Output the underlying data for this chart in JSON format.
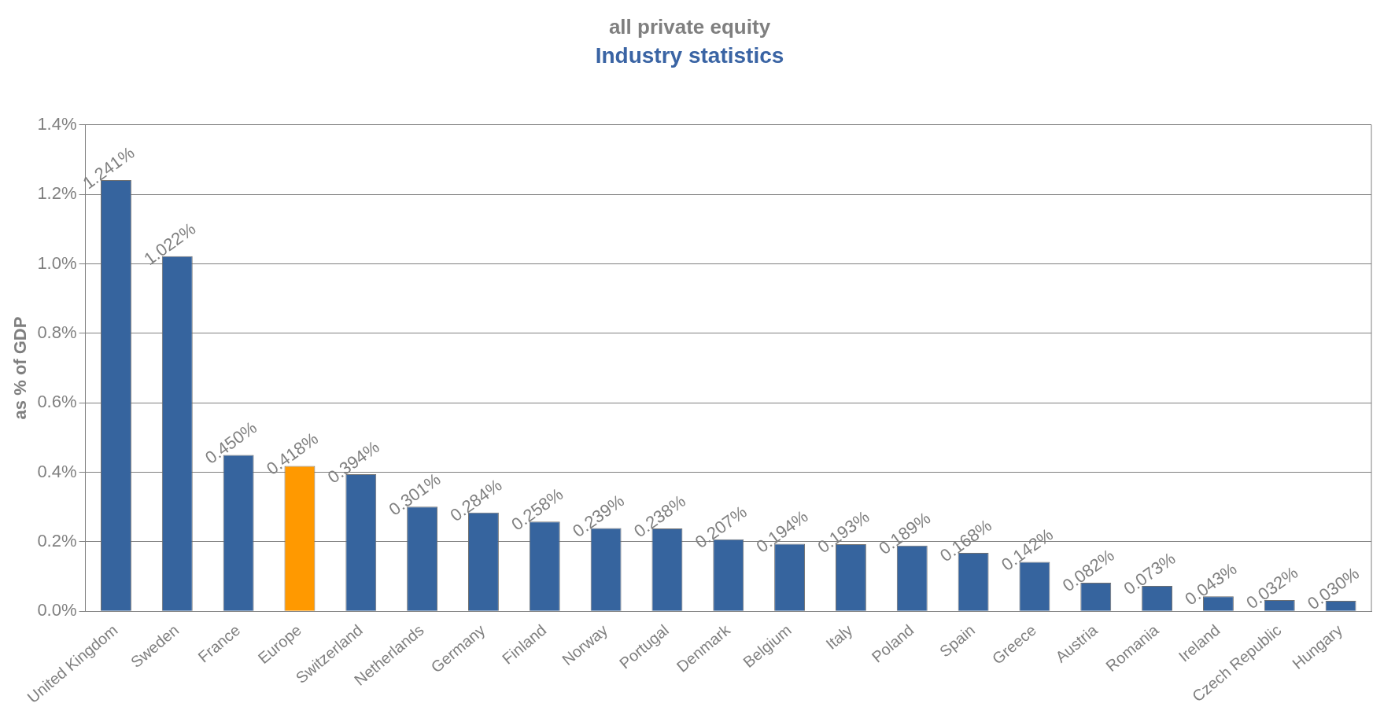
{
  "chart_data": {
    "type": "bar",
    "title": "all private equity",
    "subtitle": "Industry statistics",
    "ylabel": "as % of GDP",
    "categories": [
      "United Kingdom",
      "Sweden",
      "France",
      "Europe",
      "Switzerland",
      "Netherlands",
      "Germany",
      "Finland",
      "Norway",
      "Portugal",
      "Denmark",
      "Belgium",
      "Italy",
      "Poland",
      "Spain",
      "Greece",
      "Austria",
      "Romania",
      "Ireland",
      "Czech Republic",
      "Hungary"
    ],
    "values": [
      1.241,
      1.022,
      0.45,
      0.418,
      0.394,
      0.301,
      0.284,
      0.258,
      0.239,
      0.238,
      0.207,
      0.194,
      0.193,
      0.189,
      0.168,
      0.142,
      0.082,
      0.073,
      0.043,
      0.032,
      0.03
    ],
    "value_labels": [
      "1.241%",
      "1.022%",
      "0.450%",
      "0.418%",
      "0.394%",
      "0.301%",
      "0.284%",
      "0.258%",
      "0.239%",
      "0.238%",
      "0.207%",
      "0.194%",
      "0.193%",
      "0.189%",
      "0.168%",
      "0.142%",
      "0.082%",
      "0.073%",
      "0.043%",
      "0.032%",
      "0.030%"
    ],
    "colors": [
      "#36649e",
      "#36649e",
      "#36649e",
      "#ff9900",
      "#36649e",
      "#36649e",
      "#36649e",
      "#36649e",
      "#36649e",
      "#36649e",
      "#36649e",
      "#36649e",
      "#36649e",
      "#36649e",
      "#36649e",
      "#36649e",
      "#36649e",
      "#36649e",
      "#36649e",
      "#36649e",
      "#36649e"
    ],
    "ylim": [
      0,
      1.4
    ],
    "yticks": [
      {
        "value": 0,
        "label": "0.0%"
      },
      {
        "value": 0.2,
        "label": "0.2%"
      },
      {
        "value": 0.4,
        "label": "0.4%"
      },
      {
        "value": 0.6,
        "label": "0.6%"
      },
      {
        "value": 0.8,
        "label": "0.8%"
      },
      {
        "value": 1.0,
        "label": "1.0%"
      },
      {
        "value": 1.2,
        "label": "1.2%"
      },
      {
        "value": 1.4,
        "label": "1.4%"
      }
    ],
    "grid": "y",
    "legend": false
  }
}
